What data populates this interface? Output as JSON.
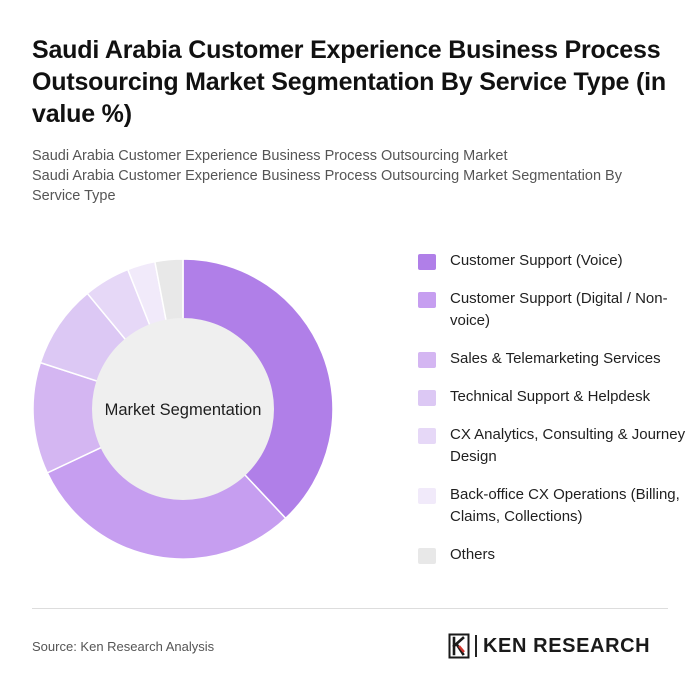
{
  "title": "Saudi Arabia Customer Experience Business Process Outsourcing Market Segmentation By Service Type (in value %)",
  "subtitles": [
    "Saudi Arabia Customer Experience Business Process Outsourcing Market",
    "Saudi Arabia Customer Experience Business Process Outsourcing Market Segmentation By Service Type"
  ],
  "chart_data": {
    "type": "pie",
    "center_label": "Market Segmentation",
    "categories": [
      "Customer Support (Voice)",
      "Customer Support (Digital / Non-voice)",
      "Sales & Telemarketing Services",
      "Technical Support & Helpdesk",
      "CX Analytics, Consulting & Journey Design",
      "Back-office CX Operations (Billing, Claims, Collections)",
      "Others"
    ],
    "values": [
      38,
      30,
      12,
      9,
      5,
      3,
      3
    ],
    "colors": [
      "#b07fe8",
      "#c69ef0",
      "#d4b6f2",
      "#dcc8f4",
      "#e6d8f7",
      "#f1eafa",
      "#e8e8e8"
    ],
    "legend_position": "right",
    "inner_color": "#efefef"
  },
  "source": "Source: Ken Research Analysis",
  "brand": {
    "name": "KEN RESEARCH",
    "logo_icon": "ken-research-logo-icon"
  }
}
